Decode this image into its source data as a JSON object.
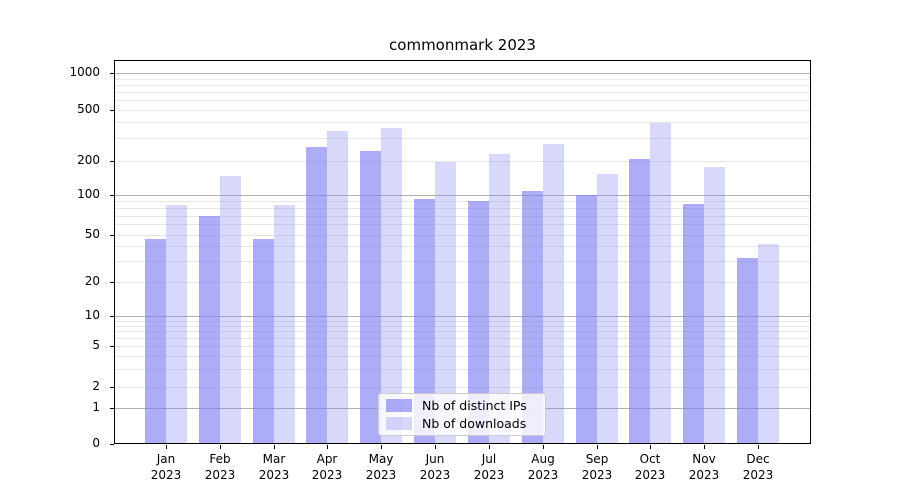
{
  "chart_data": {
    "type": "bar",
    "title": "commonmark 2023",
    "categories": [
      "Jan",
      "Feb",
      "Mar",
      "Apr",
      "May",
      "Jun",
      "Jul",
      "Aug",
      "Sep",
      "Oct",
      "Nov",
      "Dec"
    ],
    "category_year": "2023",
    "series": [
      {
        "name": "Nb of distinct IPs",
        "values": [
          46,
          70,
          46,
          255,
          238,
          93,
          90,
          108,
          100,
          208,
          86,
          32
        ],
        "color": "#7979f2",
        "alpha": 0.62
      },
      {
        "name": "Nb of downloads",
        "values": [
          84,
          148,
          84,
          340,
          360,
          195,
          225,
          270,
          154,
          395,
          178,
          42
        ],
        "color": "#7979f2",
        "alpha": 0.29
      }
    ],
    "xlabel": "",
    "ylabel": "",
    "yaxis": {
      "scale": "symlog",
      "tick_labels": [
        "0",
        "1",
        "2",
        "5",
        "10",
        "20",
        "50",
        "100",
        "200",
        "500",
        "1000"
      ],
      "tick_values": [
        0,
        1,
        2,
        5,
        10,
        20,
        50,
        100,
        200,
        500,
        1000
      ],
      "ylim": [
        0,
        1280
      ]
    },
    "grid": true,
    "legend_position": "lower center"
  },
  "colors": {
    "grid_major": "#b2b2b2",
    "grid_minor": "#e7e7e7",
    "axis": "#000000",
    "background": "#ffffff"
  }
}
